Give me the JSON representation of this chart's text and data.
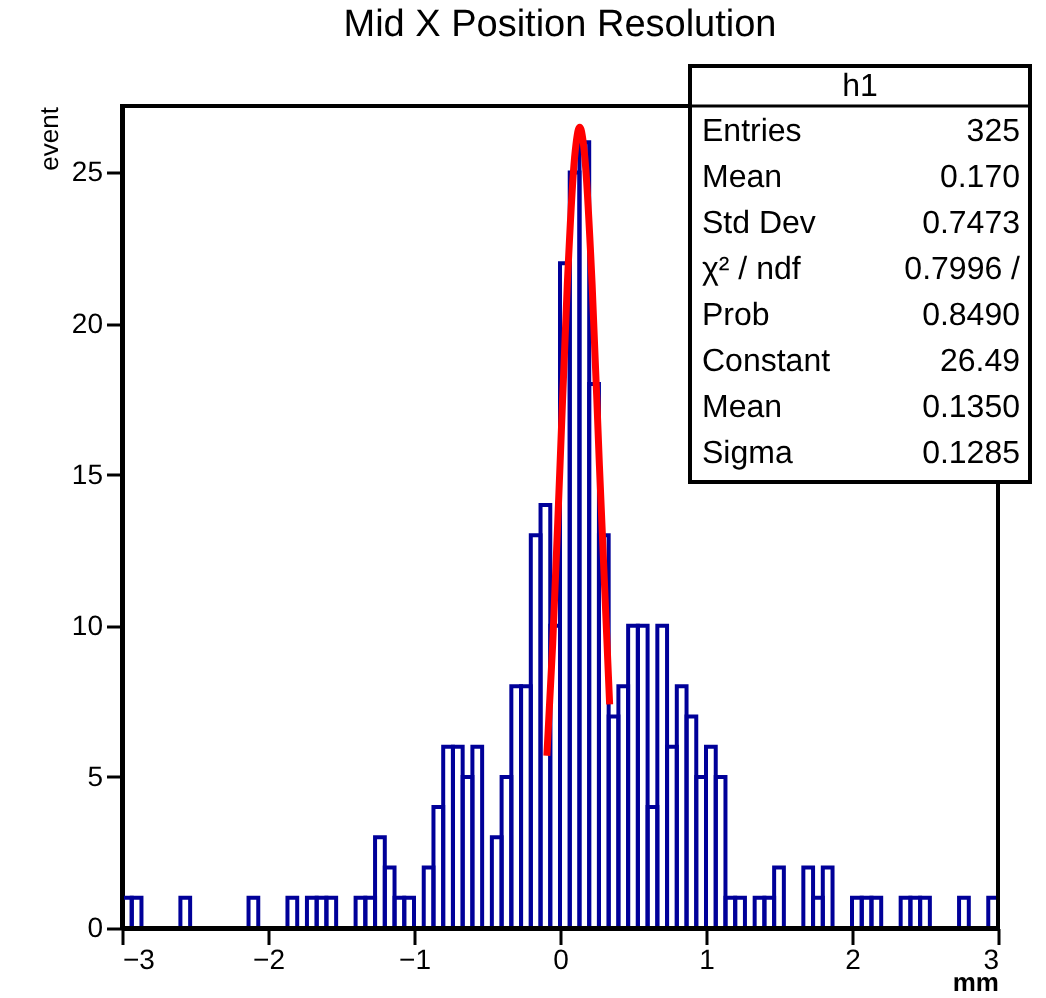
{
  "chart_data": {
    "type": "histogram",
    "title": "Mid X Position Resolution",
    "xlabel": "mm",
    "ylabel": "event",
    "bins": [
      -3,
      -2.9333,
      -2.8667,
      -2.8,
      -2.7333,
      -2.6667,
      -2.6,
      -2.5333,
      -2.4667,
      -2.4,
      -2.3333,
      -2.2667,
      -2.2,
      -2.1333,
      -2.0667,
      -2,
      -1.9333,
      -1.8667,
      -1.8,
      -1.7333,
      -1.6667,
      -1.6,
      -1.5333,
      -1.4667,
      -1.4,
      -1.3333,
      -1.2667,
      -1.2,
      -1.1333,
      -1.0667,
      -1,
      -0.9333,
      -0.8667,
      -0.8,
      -0.7333,
      -0.6667,
      -0.6,
      -0.5333,
      -0.4667,
      -0.4,
      -0.3333,
      -0.2667,
      -0.2,
      -0.1333,
      -0.0667,
      0,
      0.0667,
      0.1333,
      0.2,
      0.2667,
      0.3333,
      0.4,
      0.4667,
      0.5333,
      0.6,
      0.6667,
      0.7333,
      0.8,
      0.8667,
      0.9333,
      1,
      1.0667,
      1.1333,
      1.2,
      1.2667,
      1.3333,
      1.4,
      1.4667,
      1.5333,
      1.6,
      1.6667,
      1.7333,
      1.8,
      1.8667,
      1.9333,
      2,
      2.0667,
      2.1333,
      2.2,
      2.2667,
      2.3333,
      2.4,
      2.4667,
      2.5333,
      2.6,
      2.6667,
      2.7333,
      2.8,
      2.8667,
      2.9333,
      3
    ],
    "values": [
      1,
      1,
      0,
      0,
      0,
      0,
      1,
      0,
      0,
      0,
      0,
      0,
      0,
      1,
      0,
      0,
      0,
      1,
      0,
      1,
      1,
      1,
      0,
      0,
      1,
      1,
      3,
      2,
      1,
      1,
      0,
      2,
      4,
      6,
      6,
      5,
      6,
      0,
      3,
      5,
      8,
      8,
      13,
      14,
      10,
      22,
      25,
      26,
      18,
      13,
      7,
      8,
      10,
      10,
      4,
      10,
      6,
      8,
      7,
      5,
      6,
      5,
      1,
      1,
      0,
      1,
      1,
      2,
      0,
      0,
      2,
      1,
      2,
      0,
      0,
      1,
      1,
      1,
      0,
      0,
      1,
      1,
      1,
      0,
      0,
      0,
      1,
      0,
      0,
      1
    ],
    "color": "#000099",
    "series": [
      {
        "type": "line",
        "color": "#ff0000",
        "x": [
          -0.09,
          -0.05,
          0,
          0.05,
          0.1,
          0.135,
          0.17,
          0.22,
          0.27,
          0.34
        ],
        "values": [
          5.7,
          9.4,
          15.3,
          21.3,
          25.5,
          26.5,
          25.5,
          21.3,
          15.3,
          7.4
        ]
      }
    ],
    "xlim": [
      -3,
      3
    ],
    "ylim": [
      0,
      27.2
    ],
    "xticks": [
      {
        "value": -3,
        "label": "−3"
      },
      {
        "value": -2,
        "label": "−2"
      },
      {
        "value": -1,
        "label": "−1"
      },
      0,
      1,
      2,
      3
    ],
    "yticks": [
      0,
      5,
      10,
      15,
      20,
      25
    ],
    "annotations": [
      "h1",
      "Entries",
      "325",
      "Mean",
      "0.170",
      "Std Dev",
      "0.7473",
      "χ² / ndf",
      "0.7996 /",
      "Prob",
      "0.8490",
      "Constant",
      "26.49",
      "Mean",
      "0.1350",
      "Sigma",
      "0.1285"
    ]
  }
}
